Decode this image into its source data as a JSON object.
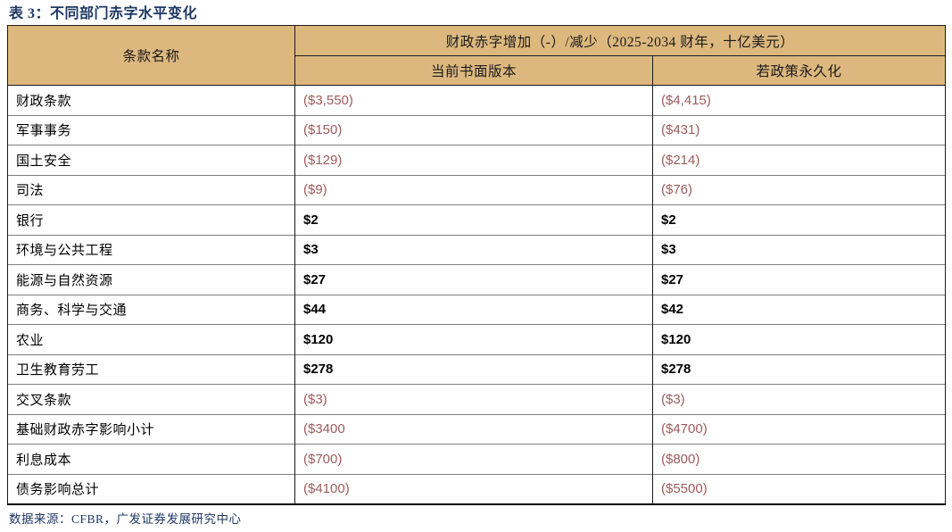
{
  "title": "表 3：不同部门赤字水平变化",
  "table": {
    "col_header": "条款名称",
    "group_header": "财政赤字增加（-）/减少（2025-2034 财年，十亿美元）",
    "sub_headers": [
      "当前书面版本",
      "若政策永久化"
    ],
    "rows": [
      {
        "label": "财政条款",
        "current": "($3,550)",
        "permanent": "($4,415)"
      },
      {
        "label": "军事事务",
        "current": "($150)",
        "permanent": "($431)"
      },
      {
        "label": "国土安全",
        "current": "($129)",
        "permanent": "($214)"
      },
      {
        "label": "司法",
        "current": "($9)",
        "permanent": "($76)"
      },
      {
        "label": "银行",
        "current": "$2",
        "permanent": "$2"
      },
      {
        "label": "环境与公共工程",
        "current": "$3",
        "permanent": "$3"
      },
      {
        "label": "能源与自然资源",
        "current": "$27",
        "permanent": "$27"
      },
      {
        "label": "商务、科学与交通",
        "current": "$44",
        "permanent": "$42"
      },
      {
        "label": "农业",
        "current": "$120",
        "permanent": "$120"
      },
      {
        "label": "卫生教育劳工",
        "current": "$278",
        "permanent": "$278"
      },
      {
        "label": "交叉条款",
        "current": "($3)",
        "permanent": "($3)"
      },
      {
        "label": "基础财政赤字影响小计",
        "current": "($3400",
        "permanent": "($4700)"
      },
      {
        "label": "利息成本",
        "current": "($700)",
        "permanent": "($800)"
      },
      {
        "label": "债务影响总计",
        "current": "($4100)",
        "permanent": "($5500)"
      }
    ]
  },
  "footer": "数据来源：CFBR，广发证券发展研究中心",
  "colors": {
    "header_bg": "#DDB87E",
    "title_color": "#1F3864",
    "negative_color": "#9D5B5B",
    "positive_color": "#000000"
  }
}
